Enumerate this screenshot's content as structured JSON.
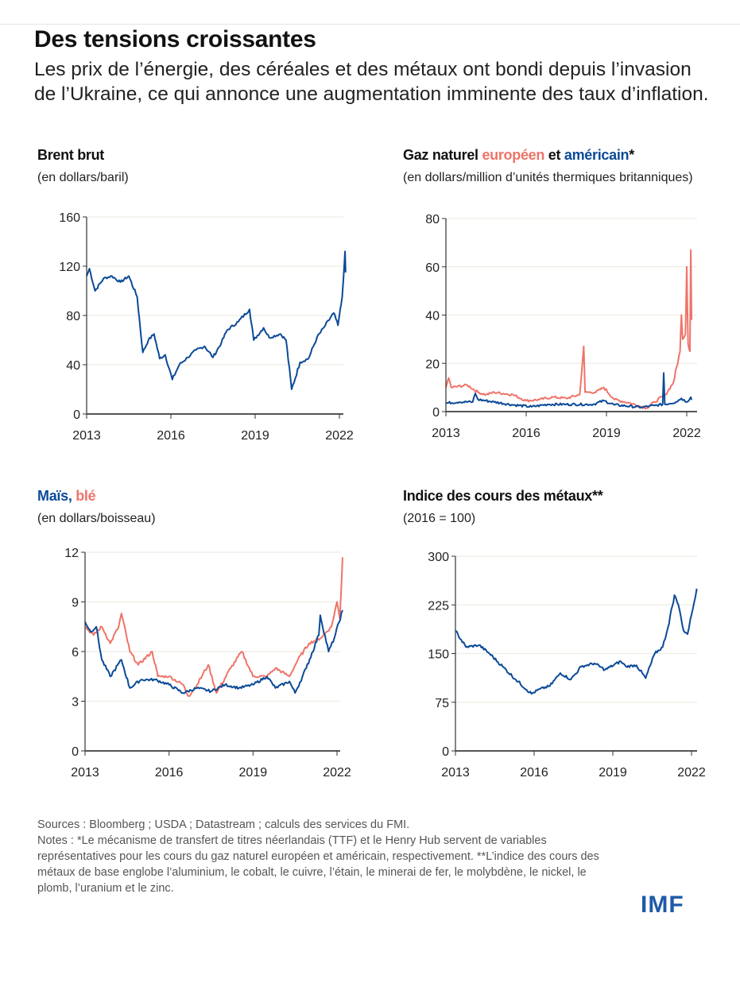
{
  "title": "Des tensions croissantes",
  "subtitle": "Les prix de l’énergie, des céréales et des métaux ont bondi depuis l’invasion de l’Ukraine, ce qui annonce une augmentation imminente des taux d’inflation.",
  "colors": {
    "blue": "#0b4a97",
    "red": "#ee7469",
    "grid": "#efefe8"
  },
  "chart_data": [
    {
      "id": "brent",
      "type": "line",
      "title": "Brent brut",
      "ylabel": "(en dollars/baril)",
      "ylim": [
        0,
        160
      ],
      "yticks": [
        "0",
        "40",
        "80",
        "120",
        "160"
      ],
      "xticks": [
        "2013",
        "2016",
        "2019",
        "2022"
      ],
      "grid": true,
      "series": [
        {
          "color": "#0b4a97",
          "points": [
            [
              2013,
              112
            ],
            [
              2013.1,
              118
            ],
            [
              2013.3,
              100
            ],
            [
              2013.6,
              110
            ],
            [
              2013.9,
              112
            ],
            [
              2014.2,
              107
            ],
            [
              2014.5,
              112
            ],
            [
              2014.8,
              95
            ],
            [
              2015.0,
              50
            ],
            [
              2015.2,
              60
            ],
            [
              2015.4,
              65
            ],
            [
              2015.6,
              45
            ],
            [
              2015.8,
              48
            ],
            [
              2016.05,
              28
            ],
            [
              2016.3,
              40
            ],
            [
              2016.6,
              46
            ],
            [
              2016.9,
              52
            ],
            [
              2017.2,
              55
            ],
            [
              2017.5,
              46
            ],
            [
              2017.8,
              58
            ],
            [
              2018.0,
              68
            ],
            [
              2018.4,
              75
            ],
            [
              2018.8,
              85
            ],
            [
              2018.95,
              60
            ],
            [
              2019.3,
              70
            ],
            [
              2019.5,
              62
            ],
            [
              2019.9,
              65
            ],
            [
              2020.1,
              60
            ],
            [
              2020.3,
              20
            ],
            [
              2020.6,
              42
            ],
            [
              2020.9,
              45
            ],
            [
              2021.2,
              62
            ],
            [
              2021.5,
              72
            ],
            [
              2021.8,
              82
            ],
            [
              2021.95,
              72
            ],
            [
              2022.1,
              95
            ],
            [
              2022.2,
              132
            ],
            [
              2022.22,
              115
            ]
          ]
        }
      ]
    },
    {
      "id": "gas",
      "type": "line",
      "title_parts": [
        "Gaz naturel ",
        "européen",
        " et ",
        "américain",
        "*"
      ],
      "ylabel": "(en dollars/million d’unités thermiques britanniques)",
      "ylim": [
        0,
        80
      ],
      "yticks": [
        "0",
        "20",
        "40",
        "60",
        "80"
      ],
      "xticks": [
        "2013",
        "2016",
        "2019",
        "2022"
      ],
      "grid": true,
      "series": [
        {
          "name": "européen",
          "color": "#ee7469",
          "points": [
            [
              2013,
              10
            ],
            [
              2013.1,
              14
            ],
            [
              2013.2,
              10
            ],
            [
              2013.8,
              11
            ],
            [
              2014.2,
              8
            ],
            [
              2014.5,
              7
            ],
            [
              2014.8,
              8
            ],
            [
              2015.5,
              7
            ],
            [
              2016.0,
              4.5
            ],
            [
              2016.5,
              5
            ],
            [
              2017,
              6
            ],
            [
              2017.5,
              5.5
            ],
            [
              2018.0,
              7
            ],
            [
              2018.15,
              27
            ],
            [
              2018.2,
              8
            ],
            [
              2018.6,
              8
            ],
            [
              2018.9,
              10
            ],
            [
              2019.3,
              5
            ],
            [
              2019.9,
              3.5
            ],
            [
              2020.3,
              2
            ],
            [
              2020.5,
              1.5
            ],
            [
              2020.8,
              4
            ],
            [
              2021.2,
              7
            ],
            [
              2021.5,
              12
            ],
            [
              2021.75,
              25
            ],
            [
              2021.8,
              40
            ],
            [
              2021.85,
              30
            ],
            [
              2021.95,
              32
            ],
            [
              2022.0,
              60
            ],
            [
              2022.05,
              28
            ],
            [
              2022.12,
              25
            ],
            [
              2022.15,
              67
            ],
            [
              2022.18,
              38
            ]
          ]
        },
        {
          "name": "américain",
          "color": "#0b4a97",
          "points": [
            [
              2013,
              3.5
            ],
            [
              2013.5,
              4
            ],
            [
              2014.0,
              4
            ],
            [
              2014.1,
              7.5
            ],
            [
              2014.2,
              5
            ],
            [
              2014.8,
              4
            ],
            [
              2015.5,
              2.8
            ],
            [
              2016.2,
              2
            ],
            [
              2016.8,
              3
            ],
            [
              2017.5,
              3
            ],
            [
              2018.5,
              3
            ],
            [
              2018.9,
              4.5
            ],
            [
              2019.3,
              2.8
            ],
            [
              2020.3,
              1.8
            ],
            [
              2020.8,
              2.5
            ],
            [
              2021.1,
              3
            ],
            [
              2021.14,
              16
            ],
            [
              2021.18,
              3
            ],
            [
              2021.6,
              4
            ],
            [
              2021.8,
              5.5
            ],
            [
              2022,
              4
            ],
            [
              2022.15,
              6
            ],
            [
              2022.2,
              5
            ]
          ]
        }
      ]
    },
    {
      "id": "grains",
      "type": "line",
      "title_parts": [
        "Maïs",
        ", ",
        "blé"
      ],
      "ylabel": "(en dollars/boisseau)",
      "ylim": [
        0,
        12
      ],
      "yticks": [
        "0",
        "3",
        "6",
        "9",
        "12"
      ],
      "xticks": [
        "2013",
        "2016",
        "2019",
        "2022"
      ],
      "grid": true,
      "series": [
        {
          "name": "blé",
          "color": "#ee7469",
          "points": [
            [
              2013,
              7.5
            ],
            [
              2013.3,
              7
            ],
            [
              2013.6,
              7.5
            ],
            [
              2013.9,
              6.5
            ],
            [
              2014.2,
              7.5
            ],
            [
              2014.3,
              8.3
            ],
            [
              2014.6,
              6
            ],
            [
              2014.9,
              5.2
            ],
            [
              2015.4,
              6
            ],
            [
              2015.6,
              4.5
            ],
            [
              2016,
              4.5
            ],
            [
              2016.5,
              4
            ],
            [
              2016.7,
              3.3
            ],
            [
              2017.0,
              4
            ],
            [
              2017.4,
              5.2
            ],
            [
              2017.7,
              3.5
            ],
            [
              2018.2,
              5
            ],
            [
              2018.6,
              6
            ],
            [
              2019,
              4.5
            ],
            [
              2019.5,
              4.5
            ],
            [
              2019.8,
              5
            ],
            [
              2020.3,
              4.5
            ],
            [
              2020.6,
              5.5
            ],
            [
              2021,
              6.5
            ],
            [
              2021.4,
              6.8
            ],
            [
              2021.8,
              7.5
            ],
            [
              2022,
              9
            ],
            [
              2022.1,
              8
            ],
            [
              2022.2,
              11.7
            ]
          ]
        },
        {
          "name": "Maïs",
          "color": "#0b4a97",
          "points": [
            [
              2013,
              7.8
            ],
            [
              2013.2,
              7.2
            ],
            [
              2013.4,
              7.5
            ],
            [
              2013.6,
              5.5
            ],
            [
              2013.9,
              4.5
            ],
            [
              2014.3,
              5.5
            ],
            [
              2014.6,
              3.8
            ],
            [
              2015,
              4.3
            ],
            [
              2015.5,
              4.3
            ],
            [
              2016,
              4
            ],
            [
              2016.5,
              3.5
            ],
            [
              2017,
              3.8
            ],
            [
              2017.5,
              3.6
            ],
            [
              2018,
              4
            ],
            [
              2018.5,
              3.8
            ],
            [
              2019,
              4
            ],
            [
              2019.5,
              4.5
            ],
            [
              2019.8,
              3.8
            ],
            [
              2020.3,
              4.2
            ],
            [
              2020.5,
              3.5
            ],
            [
              2020.9,
              5
            ],
            [
              2021.35,
              7
            ],
            [
              2021.4,
              8.2
            ],
            [
              2021.7,
              6
            ],
            [
              2021.9,
              6.8
            ],
            [
              2022.2,
              8.5
            ]
          ]
        }
      ]
    },
    {
      "id": "metals",
      "type": "line",
      "title": "Indice des cours des métaux**",
      "ylabel": "(2016 = 100)",
      "ylim": [
        0,
        300
      ],
      "yticks": [
        "0",
        "75",
        "150",
        "225",
        "300"
      ],
      "xticks": [
        "2013",
        "2016",
        "2019",
        "2022"
      ],
      "grid": true,
      "series": [
        {
          "color": "#0b4a97",
          "points": [
            [
              2013,
              185
            ],
            [
              2013.4,
              160
            ],
            [
              2013.9,
              163
            ],
            [
              2014.3,
              150
            ],
            [
              2014.8,
              130
            ],
            [
              2015.3,
              110
            ],
            [
              2015.9,
              88
            ],
            [
              2016.2,
              95
            ],
            [
              2016.6,
              100
            ],
            [
              2017.0,
              120
            ],
            [
              2017.4,
              110
            ],
            [
              2017.8,
              130
            ],
            [
              2018.3,
              135
            ],
            [
              2018.7,
              125
            ],
            [
              2019.3,
              138
            ],
            [
              2019.5,
              130
            ],
            [
              2019.9,
              132
            ],
            [
              2020.25,
              112
            ],
            [
              2020.6,
              150
            ],
            [
              2020.9,
              160
            ],
            [
              2021.1,
              190
            ],
            [
              2021.35,
              240
            ],
            [
              2021.5,
              225
            ],
            [
              2021.7,
              185
            ],
            [
              2021.85,
              180
            ],
            [
              2022,
              210
            ],
            [
              2022.2,
              250
            ]
          ]
        }
      ]
    }
  ],
  "notes": {
    "sources": "Sources : Bloomberg ; USDA ; Datastream ; calculs des services du FMI.",
    "notes": "Notes : *Le mécanisme de transfert de titres néerlandais (TTF) et le Henry Hub servent de variables représentatives pour les cours du gaz naturel européen et américain, respectivement. **L’indice des cours des métaux de base englobe l’aluminium, le cobalt, le cuivre, l’étain, le minerai de fer, le molybdène, le nickel, le plomb, l’uranium et le zinc."
  },
  "logo": "IMF"
}
